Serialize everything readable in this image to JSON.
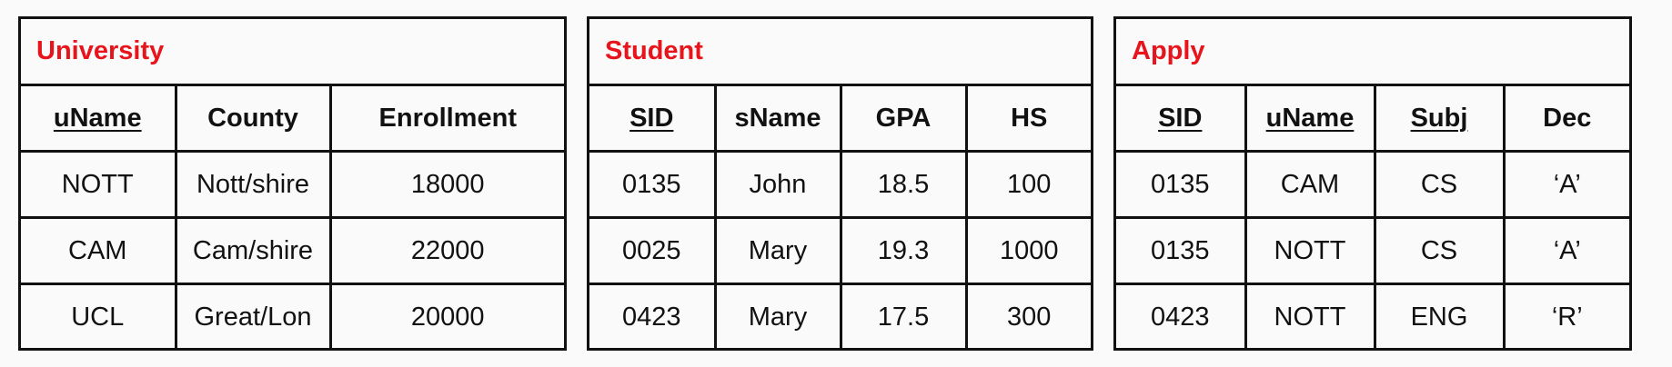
{
  "relations": [
    {
      "title": "University",
      "columns": [
        {
          "label": "uName",
          "key": true
        },
        {
          "label": "County",
          "key": false
        },
        {
          "label": "Enrollment",
          "key": false
        }
      ],
      "rows": [
        [
          "NOTT",
          "Nott/shire",
          "18000"
        ],
        [
          "CAM",
          "Cam/shire",
          "22000"
        ],
        [
          "UCL",
          "Great/Lon",
          "20000"
        ]
      ]
    },
    {
      "title": "Student",
      "columns": [
        {
          "label": "SID",
          "key": true
        },
        {
          "label": "sName",
          "key": false
        },
        {
          "label": "GPA",
          "key": false
        },
        {
          "label": "HS",
          "key": false
        }
      ],
      "rows": [
        [
          "0135",
          "John",
          "18.5",
          "100"
        ],
        [
          "0025",
          "Mary",
          "19.3",
          "1000"
        ],
        [
          "0423",
          "Mary",
          "17.5",
          "300"
        ]
      ]
    },
    {
      "title": "Apply",
      "columns": [
        {
          "label": "SID",
          "key": true
        },
        {
          "label": "uName",
          "key": true
        },
        {
          "label": "Subj",
          "key": true
        },
        {
          "label": "Dec",
          "key": false
        }
      ],
      "rows": [
        [
          "0135",
          "CAM",
          "CS",
          "‘A’"
        ],
        [
          "0135",
          "NOTT",
          "CS",
          "‘A’"
        ],
        [
          "0423",
          "NOTT",
          "ENG",
          "‘R’"
        ]
      ]
    }
  ],
  "colors": {
    "title": "#e8141b",
    "border": "#111111",
    "background": "#fafafa"
  }
}
